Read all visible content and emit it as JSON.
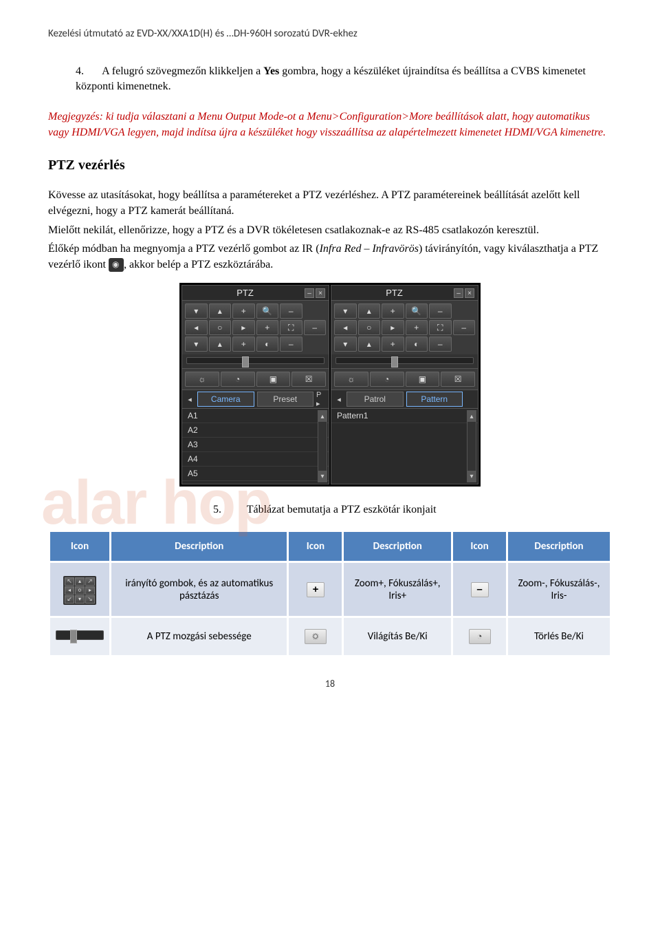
{
  "header": "Kezelési útmutató az EVD-XX/XXA1D(H) és …DH-960H sorozatú DVR-ekhez",
  "step4": {
    "num": "4.",
    "text_a": "A felugró szövegmezőn klikkeljen a ",
    "bold1": "Yes",
    "text_b": " gombra, hogy a készüléket újraindítsa és beállítsa a CVBS kimenetet központi kimenetnek."
  },
  "note": {
    "label": "Megjegyzés",
    "text": ": ki tudja választani a Menu Output Mode-ot a Menu>Configuration>More beállítások alatt, hogy automatikus vagy HDMI/VGA legyen, majd indítsa újra a készüléket hogy visszaállítsa az alapértelmezett kimenetet HDMI/VGA kimenetre."
  },
  "ptz_heading": "PTZ vezérlés",
  "para1": "Kövesse az utasításokat, hogy beállítsa a paramétereket a PTZ vezérléshez. A PTZ paramétereinek beállítását azelőtt kell elvégezni, hogy a PTZ kamerát beállítaná.",
  "para2": "Mielőtt nekilát, ellenőrizze, hogy a PTZ és a DVR tökéletesen csatlakoznak-e az RS-485 csatlakozón keresztül.",
  "para3_a": "Élőkép módban ha megnyomja a PTZ vezérlő gombot az IR (",
  "para3_it": "Infra Red – Infravörös",
  "para3_b": ") távirányítón, vagy kiválaszthatja a PTZ vezérlő ikont",
  "para3_c": ", akkor belép a PTZ eszköztárába.",
  "ptz_panel": {
    "title": "PTZ",
    "win_min": "–",
    "win_close": "×",
    "dpad": [
      "▾",
      "▴",
      "+",
      "🔍",
      "–",
      "◂",
      "○",
      "▸",
      "+",
      "⛶",
      "–",
      "▾",
      "▴",
      "+",
      "◐",
      "–"
    ],
    "rows": [
      [
        "▾",
        "▴",
        "+",
        "🔍",
        "–"
      ],
      [
        "◂",
        "○",
        "▸",
        "+",
        "⛶",
        "–"
      ],
      [
        "▾",
        "▴",
        "+",
        "◐",
        "–"
      ]
    ],
    "iconrow": [
      "☼",
      "◔",
      "▣",
      "☒"
    ],
    "tabs_left": {
      "arrow_l": "◂",
      "tab1": "Camera",
      "tab2": "Preset",
      "arrow_r_lbl": "P ▸"
    },
    "tabs_right": {
      "arrow_l": "◂",
      "tab1": "Patrol",
      "tab2": "Pattern"
    },
    "list_left": [
      "A1",
      "A2",
      "A3",
      "A4",
      "A5"
    ],
    "list_right": [
      "Pattern1"
    ],
    "scroll_up": "▴",
    "scroll_dn": "▾"
  },
  "caption": {
    "num": "5.",
    "text": "Táblázat bemutatja a PTZ eszkötár ikonjait"
  },
  "table": {
    "headers": [
      "Icon",
      "Description",
      "Icon",
      "Description",
      "Icon",
      "Description"
    ],
    "rows": [
      {
        "d1": "irányító gombok, és az automatikus pásztázás",
        "i2": "+",
        "d2": "Zoom+, Fókuszálás+, Iris+",
        "i3": "–",
        "d3": "Zoom-, Fókuszálás-, Iris-"
      },
      {
        "d1": "A PTZ mozgási sebessége",
        "i2_glyph": "☼",
        "d2": "Világítás Be/Ki",
        "i3_glyph": "◔",
        "d3": "Törlés Be/Ki"
      }
    ]
  },
  "watermark": "alar     hop",
  "page_number": "18"
}
